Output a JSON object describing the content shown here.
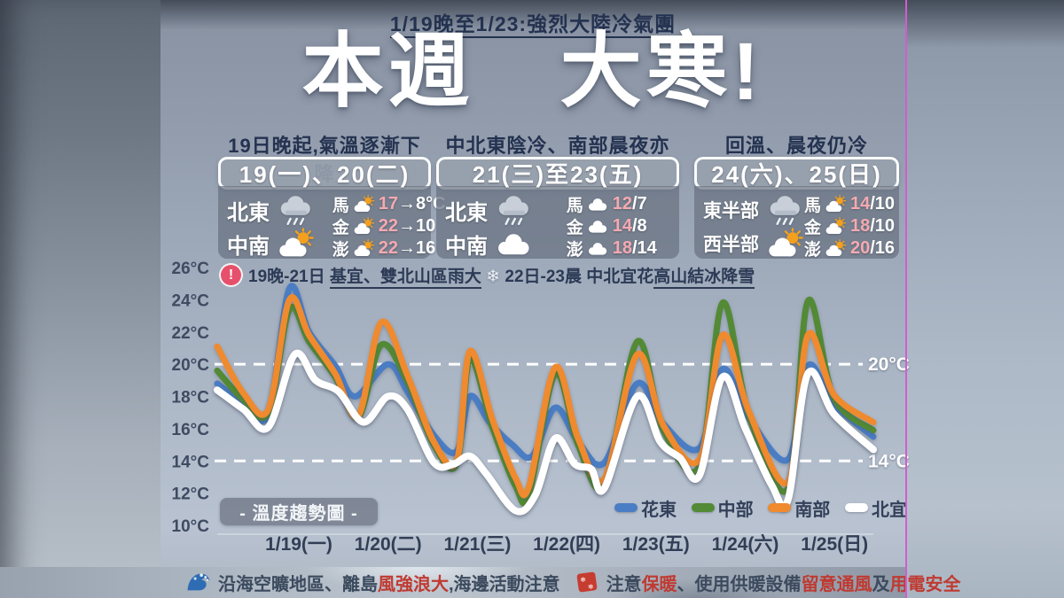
{
  "banner": {
    "text": "1/19晚至1/23:強烈大陸冷氣團"
  },
  "title": "本週　大寒!",
  "panels": [
    {
      "header": "19日晚起,氣溫逐漸下降",
      "date_range": "19(一)、20(二)",
      "regions": [
        {
          "label": "北東",
          "icon": "rain-cloud-icon"
        },
        {
          "label": "中南",
          "icon": "partly-sunny-icon"
        }
      ],
      "islands": [
        {
          "label": "馬",
          "icon": "partly-sunny-icon",
          "high": "17",
          "rest": "→8°C"
        },
        {
          "label": "金",
          "icon": "partly-sunny-icon",
          "high": "22",
          "rest": "→10"
        },
        {
          "label": "澎",
          "icon": "partly-sunny-icon",
          "high": "22",
          "rest": "→16"
        }
      ]
    },
    {
      "header": "中北東陰冷、南部晨夜亦寒",
      "date_range": "21(三)至23(五)",
      "regions": [
        {
          "label": "北東",
          "icon": "rain-cloud-icon"
        },
        {
          "label": "中南",
          "icon": "cloud-icon"
        }
      ],
      "islands": [
        {
          "label": "馬",
          "icon": "cloud-icon",
          "high": "12",
          "rest": "/7"
        },
        {
          "label": "金",
          "icon": "cloud-icon",
          "high": "14",
          "rest": "/8"
        },
        {
          "label": "澎",
          "icon": "cloud-icon",
          "high": "18",
          "rest": "/14"
        }
      ]
    },
    {
      "header": "回溫、晨夜仍冷",
      "date_range": "24(六)、25(日)",
      "regions": [
        {
          "label": "東半部",
          "icon": "rain-cloud-icon"
        },
        {
          "label": "西半部",
          "icon": "partly-sunny-icon"
        }
      ],
      "islands": [
        {
          "label": "馬",
          "icon": "partly-sunny-icon",
          "high": "14",
          "rest": "/10"
        },
        {
          "label": "金",
          "icon": "partly-sunny-icon",
          "high": "18",
          "rest": "/10"
        },
        {
          "label": "澎",
          "icon": "partly-sunny-icon",
          "high": "20",
          "rest": "/16"
        }
      ]
    }
  ],
  "alert": {
    "badge": "!",
    "part1": "19晚-21日 ",
    "underline1": "基宜、雙北山區雨大",
    "snowflake": "❄",
    "part2": " 22日-23晨 中北宜花",
    "underline2": "高山結冰降雪"
  },
  "chart_label": "- 溫度趨勢圖 -",
  "chart_data": {
    "type": "line",
    "title": "溫度趨勢圖",
    "ylabel": "°C",
    "ylim": [
      10,
      26
    ],
    "ytick_labels": [
      "26°C",
      "24°C",
      "22°C",
      "20°C",
      "18°C",
      "16°C",
      "14°C",
      "12°C",
      "10°C"
    ],
    "yticks": [
      26,
      24,
      22,
      20,
      18,
      16,
      14,
      12,
      10
    ],
    "grid": false,
    "reference_lines": [
      20,
      14
    ],
    "reference_labels": [
      "20°C",
      "14°C"
    ],
    "legend_position": "bottom-right",
    "x_categories": [
      "1/19(一)",
      "1/20(二)",
      "1/21(三)",
      "1/22(四)",
      "1/23(五)",
      "1/24(六)",
      "1/25(日)"
    ],
    "x_note": "series x values are percent of the 7-day span; temps in °C",
    "series": [
      {
        "name": "花東",
        "color": "#4a7dc4",
        "points": [
          [
            0,
            18.8
          ],
          [
            4,
            17.6
          ],
          [
            7.8,
            16.9
          ],
          [
            11,
            24.7
          ],
          [
            14,
            22.0
          ],
          [
            18,
            19.9
          ],
          [
            21,
            18.0
          ],
          [
            26,
            20.0
          ],
          [
            29,
            18.3
          ],
          [
            33,
            15.6
          ],
          [
            36.5,
            14.6
          ],
          [
            38.5,
            18.0
          ],
          [
            41.5,
            16.4
          ],
          [
            45,
            15.0
          ],
          [
            48,
            14.3
          ],
          [
            51.5,
            17.3
          ],
          [
            55,
            15.2
          ],
          [
            59,
            13.9
          ],
          [
            64,
            18.8
          ],
          [
            68,
            16.3
          ],
          [
            73.5,
            14.8
          ],
          [
            77,
            19.7
          ],
          [
            81,
            16.7
          ],
          [
            87,
            14.1
          ],
          [
            90,
            19.9
          ],
          [
            94,
            17.5
          ],
          [
            100,
            15.5
          ]
        ]
      },
      {
        "name": "中部",
        "color": "#538a35",
        "points": [
          [
            0,
            19.6
          ],
          [
            4,
            17.8
          ],
          [
            7.8,
            17.0
          ],
          [
            11,
            23.4
          ],
          [
            14,
            21.4
          ],
          [
            18,
            19.2
          ],
          [
            21.5,
            16.7
          ],
          [
            25,
            21.2
          ],
          [
            29,
            18.9
          ],
          [
            33,
            15.0
          ],
          [
            36.5,
            13.8
          ],
          [
            38.5,
            20.3
          ],
          [
            42,
            16.0
          ],
          [
            45.5,
            12.4
          ],
          [
            47.5,
            11.9
          ],
          [
            51.5,
            19.4
          ],
          [
            55,
            15.0
          ],
          [
            59,
            12.5
          ],
          [
            64,
            21.4
          ],
          [
            68,
            15.9
          ],
          [
            73.5,
            13.7
          ],
          [
            77,
            23.8
          ],
          [
            81,
            16.9
          ],
          [
            87,
            12.3
          ],
          [
            90,
            23.9
          ],
          [
            94,
            17.9
          ],
          [
            100,
            15.9
          ]
        ]
      },
      {
        "name": "南部",
        "color": "#f08a2e",
        "points": [
          [
            0,
            21.1
          ],
          [
            4,
            18.2
          ],
          [
            7.8,
            17.2
          ],
          [
            11,
            24.0
          ],
          [
            14,
            21.8
          ],
          [
            18,
            19.4
          ],
          [
            21.5,
            16.8
          ],
          [
            25,
            22.6
          ],
          [
            29,
            19.3
          ],
          [
            33,
            15.2
          ],
          [
            36.5,
            14.0
          ],
          [
            38.5,
            20.8
          ],
          [
            42,
            16.5
          ],
          [
            45.5,
            12.9
          ],
          [
            47.5,
            12.4
          ],
          [
            51.5,
            19.8
          ],
          [
            55,
            15.4
          ],
          [
            59,
            12.9
          ],
          [
            64,
            20.6
          ],
          [
            68,
            16.2
          ],
          [
            73.5,
            14.1
          ],
          [
            77,
            21.8
          ],
          [
            81,
            17.1
          ],
          [
            87,
            12.7
          ],
          [
            90,
            21.8
          ],
          [
            94,
            18.1
          ],
          [
            100,
            16.4
          ]
        ]
      },
      {
        "name": "北宜",
        "color": "#ffffff",
        "points": [
          [
            0,
            18.4
          ],
          [
            4,
            17.2
          ],
          [
            7.8,
            16.1
          ],
          [
            11.8,
            20.6
          ],
          [
            15,
            19.0
          ],
          [
            18.5,
            18.3
          ],
          [
            22.3,
            16.4
          ],
          [
            26,
            18.0
          ],
          [
            29,
            17.2
          ],
          [
            33,
            13.9
          ],
          [
            36,
            13.8
          ],
          [
            38.5,
            14.3
          ],
          [
            41,
            13.2
          ],
          [
            45.5,
            10.9
          ],
          [
            48.5,
            11.9
          ],
          [
            51.5,
            15.4
          ],
          [
            54.5,
            13.8
          ],
          [
            57,
            13.5
          ],
          [
            59,
            12.3
          ],
          [
            64,
            18.0
          ],
          [
            67.5,
            15.2
          ],
          [
            70.5,
            14.2
          ],
          [
            73.5,
            13.1
          ],
          [
            77,
            19.2
          ],
          [
            80.5,
            16.0
          ],
          [
            84.5,
            12.5
          ],
          [
            87,
            11.6
          ],
          [
            90,
            19.4
          ],
          [
            94,
            16.9
          ],
          [
            100,
            14.7
          ]
        ]
      }
    ]
  },
  "footer": {
    "marine": {
      "pre": "沿海空曠地區、離島",
      "red": "風強浪大",
      "post": ",海邊活動注意"
    },
    "warm": {
      "p1": "注意",
      "r1": "保暖",
      "p2": "、使用供暖設備",
      "r2": "留意通風",
      "p3": "及",
      "r3": "用電安全"
    }
  },
  "icons": {
    "rain-cloud-icon": "gray cloud with rain streaks",
    "partly-sunny-icon": "sun behind white cloud",
    "cloud-icon": "white cloud",
    "warning-icon": "pink circle with exclamation mark",
    "snowflake-icon": "white snowflake ❄",
    "wave-icon": "blue ocean wave",
    "warm-pack-icon": "red heat pack with snowflakes"
  }
}
